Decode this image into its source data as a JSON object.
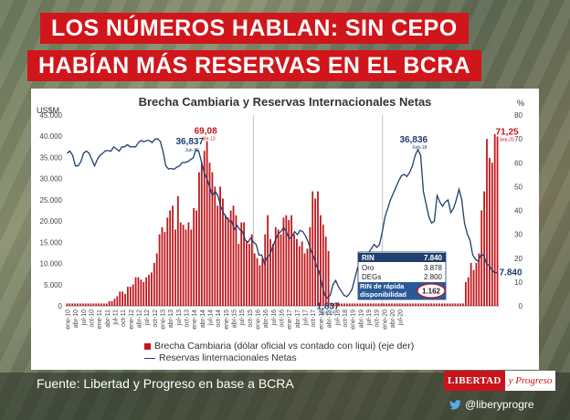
{
  "headline": {
    "line1": "LOS NÚMEROS HABLAN:  SIN CEPO",
    "line2": "HABÍAN MÁS RESERVAS EN EL BCRA"
  },
  "footer": {
    "source": "Fuente: Libertad y Progreso en base a BCRA",
    "logo_part1": "LIBERTAD",
    "logo_part2": "y Progreso",
    "twitter_handle": "@liberyprogre",
    "icon": "twitter-bird-icon"
  },
  "colors": {
    "bars": "#c0171c",
    "line": "#1f3f6e",
    "headline_bg": "#d0161b"
  },
  "chart_data": {
    "type": "bar+line",
    "title": "Brecha Cambiaria y Reservas Internacionales Netas",
    "ylabel_left": "US$M",
    "ylabel_right": "%",
    "ylim_left": [
      0,
      45000
    ],
    "ylim_right": [
      0,
      80
    ],
    "yticks_left": [
      "0",
      "5.000",
      "10.000",
      "15.000",
      "20.000",
      "25.000",
      "30.000",
      "35.000",
      "40.000",
      "45.000"
    ],
    "yticks_right": [
      "0",
      "10",
      "20",
      "30",
      "40",
      "50",
      "60",
      "70",
      "80"
    ],
    "xticks": [
      "ene-10",
      "abr-10",
      "jul-10",
      "oct-10",
      "ene-11",
      "abr-11",
      "jul-11",
      "oct-11",
      "ene-12",
      "abr-12",
      "jul-12",
      "oct-12",
      "ene-13",
      "abr-13",
      "jul-13",
      "oct-13",
      "ene-14",
      "abr-14",
      "jul-14",
      "oct-14",
      "ene-15",
      "abr-15",
      "jul-15",
      "oct-15",
      "ene-16",
      "abr-16",
      "jul-16",
      "oct-16",
      "ene-17",
      "abr-17",
      "jul-17",
      "oct-17",
      "ene-18",
      "abr-18",
      "jul-18",
      "oct-18",
      "ene-19",
      "abr-19",
      "jul-19",
      "oct-19",
      "ene-20",
      "abr-20",
      "jul-20"
    ],
    "series": [
      {
        "name": "Brecha Cambiaria (dólar oficial vs contado con liqui) (eje der)",
        "axis": "right",
        "kind": "bar",
        "values": [
          1,
          1,
          1,
          1,
          1,
          1,
          1,
          1,
          1,
          1,
          1,
          1,
          1,
          1,
          1,
          1,
          2,
          2,
          3,
          4,
          6,
          6,
          5,
          8,
          8,
          9,
          12,
          12,
          11,
          10,
          12,
          13,
          14,
          18,
          22,
          30,
          33,
          31,
          37,
          40,
          42,
          32,
          46,
          35,
          34,
          32,
          35,
          32,
          41,
          40,
          56,
          60,
          65,
          69,
          60,
          56,
          50,
          42,
          50,
          45,
          38,
          37,
          40,
          42,
          38,
          26,
          35,
          35,
          27,
          26,
          30,
          22,
          20,
          17,
          20,
          30,
          38,
          28,
          26,
          33,
          32,
          30,
          37,
          38,
          36,
          38,
          30,
          28,
          25,
          27,
          22,
          24,
          33,
          48,
          45,
          48,
          38,
          34,
          29,
          23,
          1,
          1,
          1,
          1,
          1,
          1,
          1,
          1,
          1,
          1,
          1,
          1,
          1,
          1,
          1,
          1,
          1,
          1,
          1,
          1,
          1,
          1,
          1,
          1,
          1,
          1,
          1,
          1,
          1,
          1,
          1,
          1,
          1,
          1,
          1,
          1,
          1,
          1,
          1,
          1,
          1,
          1,
          1,
          1,
          1,
          1,
          1,
          1,
          1,
          1,
          1,
          10,
          12,
          18,
          15,
          18,
          22,
          40,
          48,
          70,
          62,
          60,
          72,
          71
        ]
      },
      {
        "name": "Reservas linternacionales Netas",
        "axis": "left",
        "kind": "line",
        "values": [
          36000,
          36500,
          35500,
          33000,
          33000,
          34000,
          36000,
          36500,
          36000,
          34500,
          33000,
          34500,
          35500,
          36000,
          36600,
          36600,
          36500,
          37500,
          37000,
          36500,
          37500,
          37500,
          38000,
          37500,
          37500,
          37500,
          38500,
          39000,
          38700,
          39000,
          39000,
          38500,
          39300,
          39400,
          38800,
          36400,
          33000,
          32300,
          32400,
          32200,
          32700,
          33000,
          33800,
          33800,
          34000,
          34500,
          34900,
          36837,
          36500,
          34000,
          31500,
          30000,
          28000,
          26000,
          27000,
          26000,
          23500,
          22000,
          21000,
          20000,
          20000,
          18000,
          19000,
          18000,
          17500,
          15500,
          15000,
          16000,
          15000,
          14500,
          12000,
          12000,
          10000,
          11500,
          12000,
          14000,
          15500,
          17000,
          17500,
          18500,
          17500,
          15800,
          16300,
          17500,
          16800,
          17800,
          17500,
          16500,
          15000,
          13000,
          11500,
          9500,
          8000,
          5000,
          2500,
          1837,
          2500,
          5000,
          6000,
          4500,
          3500,
          2500,
          2200,
          2800,
          4000,
          6500,
          9000,
          10000,
          11000,
          12000,
          12500,
          13500,
          14500,
          13800,
          14500,
          17500,
          21000,
          23000,
          25000,
          26500,
          28000,
          29500,
          30700,
          31000,
          30500,
          31500,
          33000,
          35500,
          36836,
          35500,
          27000,
          24000,
          21000,
          19500,
          20000,
          26000,
          24500,
          23500,
          24500,
          25000,
          22000,
          23000,
          25000,
          27500,
          25000,
          19500,
          17000,
          15500,
          12000,
          11000,
          10500,
          12000,
          12000,
          10000,
          9500,
          8500,
          7840,
          7840
        ]
      }
    ],
    "annotations": [
      {
        "label": "36,837",
        "date": "Jun-12"
      },
      {
        "label": "69,08",
        "date": "Abr-13"
      },
      {
        "label": "1,837",
        "date": "Nov-15"
      },
      {
        "label": "36,836",
        "date": "Feb-18"
      },
      {
        "label": "71,25",
        "date": "Sep-20"
      },
      {
        "label": "7.840",
        "date": ""
      }
    ],
    "table": {
      "rows": [
        {
          "label": "RIN",
          "value": "7.840"
        },
        {
          "label": "Oro",
          "value": "3.878"
        },
        {
          "label": "DEGs",
          "value": "2.800"
        }
      ],
      "highlight_label": "RIN de rápida disponibilidad",
      "highlight_value": "1.162"
    },
    "legend_placement": "bottom-left",
    "grid": false
  }
}
